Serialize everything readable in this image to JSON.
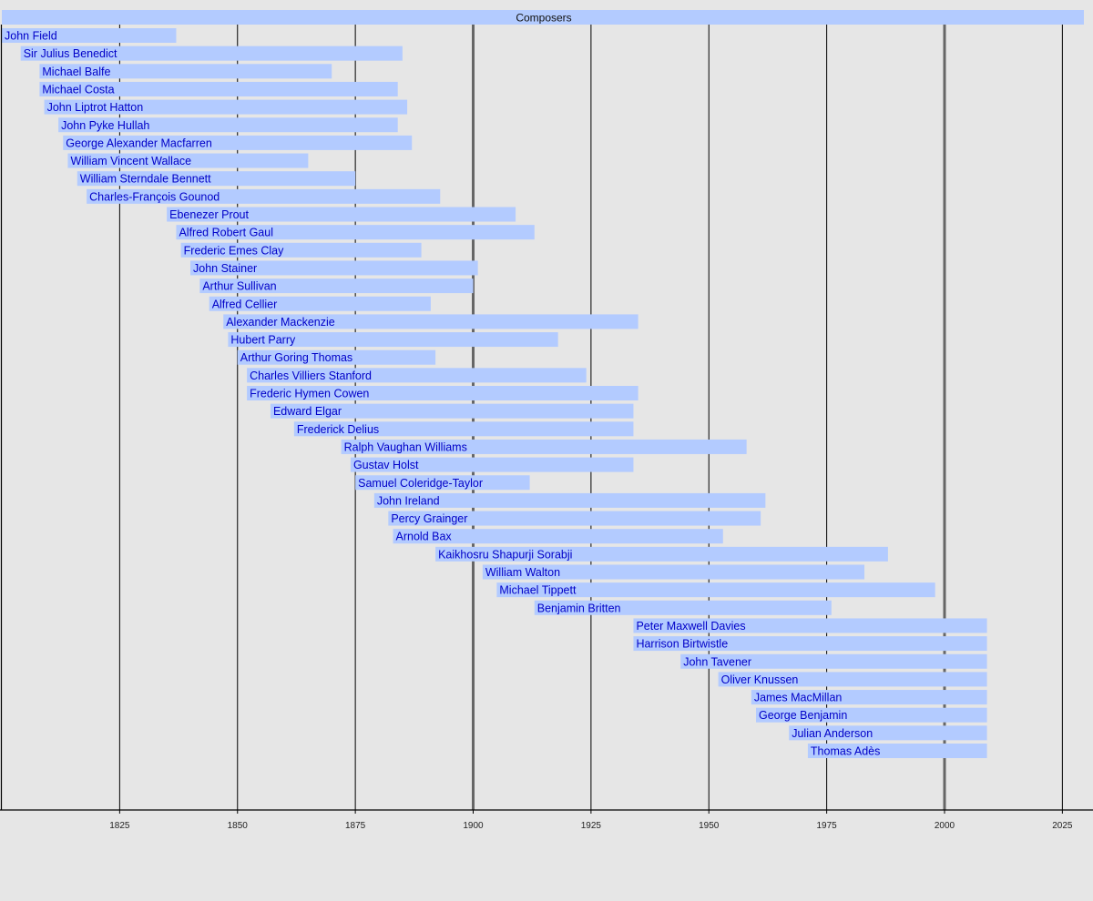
{
  "chart_data": {
    "type": "timeline",
    "title": "Composers",
    "xlim": [
      1800,
      2030
    ],
    "xticks": [
      1825,
      1850,
      1875,
      1900,
      1925,
      1950,
      1975,
      2000,
      2025
    ],
    "major_gridlines": [
      1900,
      2000
    ],
    "grid": true,
    "colors": {
      "bar": "#b3cbff",
      "text": "#0000c8",
      "background": "#e6e6e6",
      "grid": "#000000",
      "major_grid": "#666666"
    },
    "bars": [
      {
        "name": "John Field",
        "start": 1800,
        "end": 1837
      },
      {
        "name": "Sir Julius Benedict",
        "start": 1804,
        "end": 1885
      },
      {
        "name": "Michael Balfe",
        "start": 1808,
        "end": 1870
      },
      {
        "name": "Michael Costa",
        "start": 1808,
        "end": 1884
      },
      {
        "name": "John Liptrot Hatton",
        "start": 1809,
        "end": 1886
      },
      {
        "name": "John Pyke Hullah",
        "start": 1812,
        "end": 1884
      },
      {
        "name": "George Alexander Macfarren",
        "start": 1813,
        "end": 1887
      },
      {
        "name": "William Vincent Wallace",
        "start": 1814,
        "end": 1865
      },
      {
        "name": "William Sterndale Bennett",
        "start": 1816,
        "end": 1875
      },
      {
        "name": "Charles-François Gounod",
        "start": 1818,
        "end": 1893
      },
      {
        "name": "Ebenezer Prout",
        "start": 1835,
        "end": 1909
      },
      {
        "name": "Alfred Robert Gaul",
        "start": 1837,
        "end": 1913
      },
      {
        "name": "Frederic Emes Clay",
        "start": 1838,
        "end": 1889
      },
      {
        "name": "John Stainer",
        "start": 1840,
        "end": 1901
      },
      {
        "name": "Arthur Sullivan",
        "start": 1842,
        "end": 1900
      },
      {
        "name": "Alfred Cellier",
        "start": 1844,
        "end": 1891
      },
      {
        "name": "Alexander Mackenzie",
        "start": 1847,
        "end": 1935
      },
      {
        "name": "Hubert Parry",
        "start": 1848,
        "end": 1918
      },
      {
        "name": "Arthur Goring Thomas",
        "start": 1850,
        "end": 1892
      },
      {
        "name": "Charles Villiers Stanford",
        "start": 1852,
        "end": 1924
      },
      {
        "name": "Frederic Hymen Cowen",
        "start": 1852,
        "end": 1935
      },
      {
        "name": "Edward Elgar",
        "start": 1857,
        "end": 1934
      },
      {
        "name": "Frederick Delius",
        "start": 1862,
        "end": 1934
      },
      {
        "name": "Ralph Vaughan Williams",
        "start": 1872,
        "end": 1958
      },
      {
        "name": "Gustav Holst",
        "start": 1874,
        "end": 1934
      },
      {
        "name": "Samuel Coleridge-Taylor",
        "start": 1875,
        "end": 1912
      },
      {
        "name": "John Ireland",
        "start": 1879,
        "end": 1962
      },
      {
        "name": "Percy Grainger",
        "start": 1882,
        "end": 1961
      },
      {
        "name": "Arnold Bax",
        "start": 1883,
        "end": 1953
      },
      {
        "name": "Kaikhosru Shapurji Sorabji",
        "start": 1892,
        "end": 1988
      },
      {
        "name": "William Walton",
        "start": 1902,
        "end": 1983
      },
      {
        "name": "Michael Tippett",
        "start": 1905,
        "end": 1998
      },
      {
        "name": "Benjamin Britten",
        "start": 1913,
        "end": 1976
      },
      {
        "name": "Peter Maxwell Davies",
        "start": 1934,
        "end": 2009
      },
      {
        "name": "Harrison Birtwistle",
        "start": 1934,
        "end": 2009
      },
      {
        "name": "John Tavener",
        "start": 1944,
        "end": 2009
      },
      {
        "name": "Oliver Knussen",
        "start": 1952,
        "end": 2009
      },
      {
        "name": "James MacMillan",
        "start": 1959,
        "end": 2009
      },
      {
        "name": "George Benjamin",
        "start": 1960,
        "end": 2009
      },
      {
        "name": "Julian Anderson",
        "start": 1967,
        "end": 2009
      },
      {
        "name": "Thomas Adès",
        "start": 1971,
        "end": 2009
      }
    ]
  }
}
